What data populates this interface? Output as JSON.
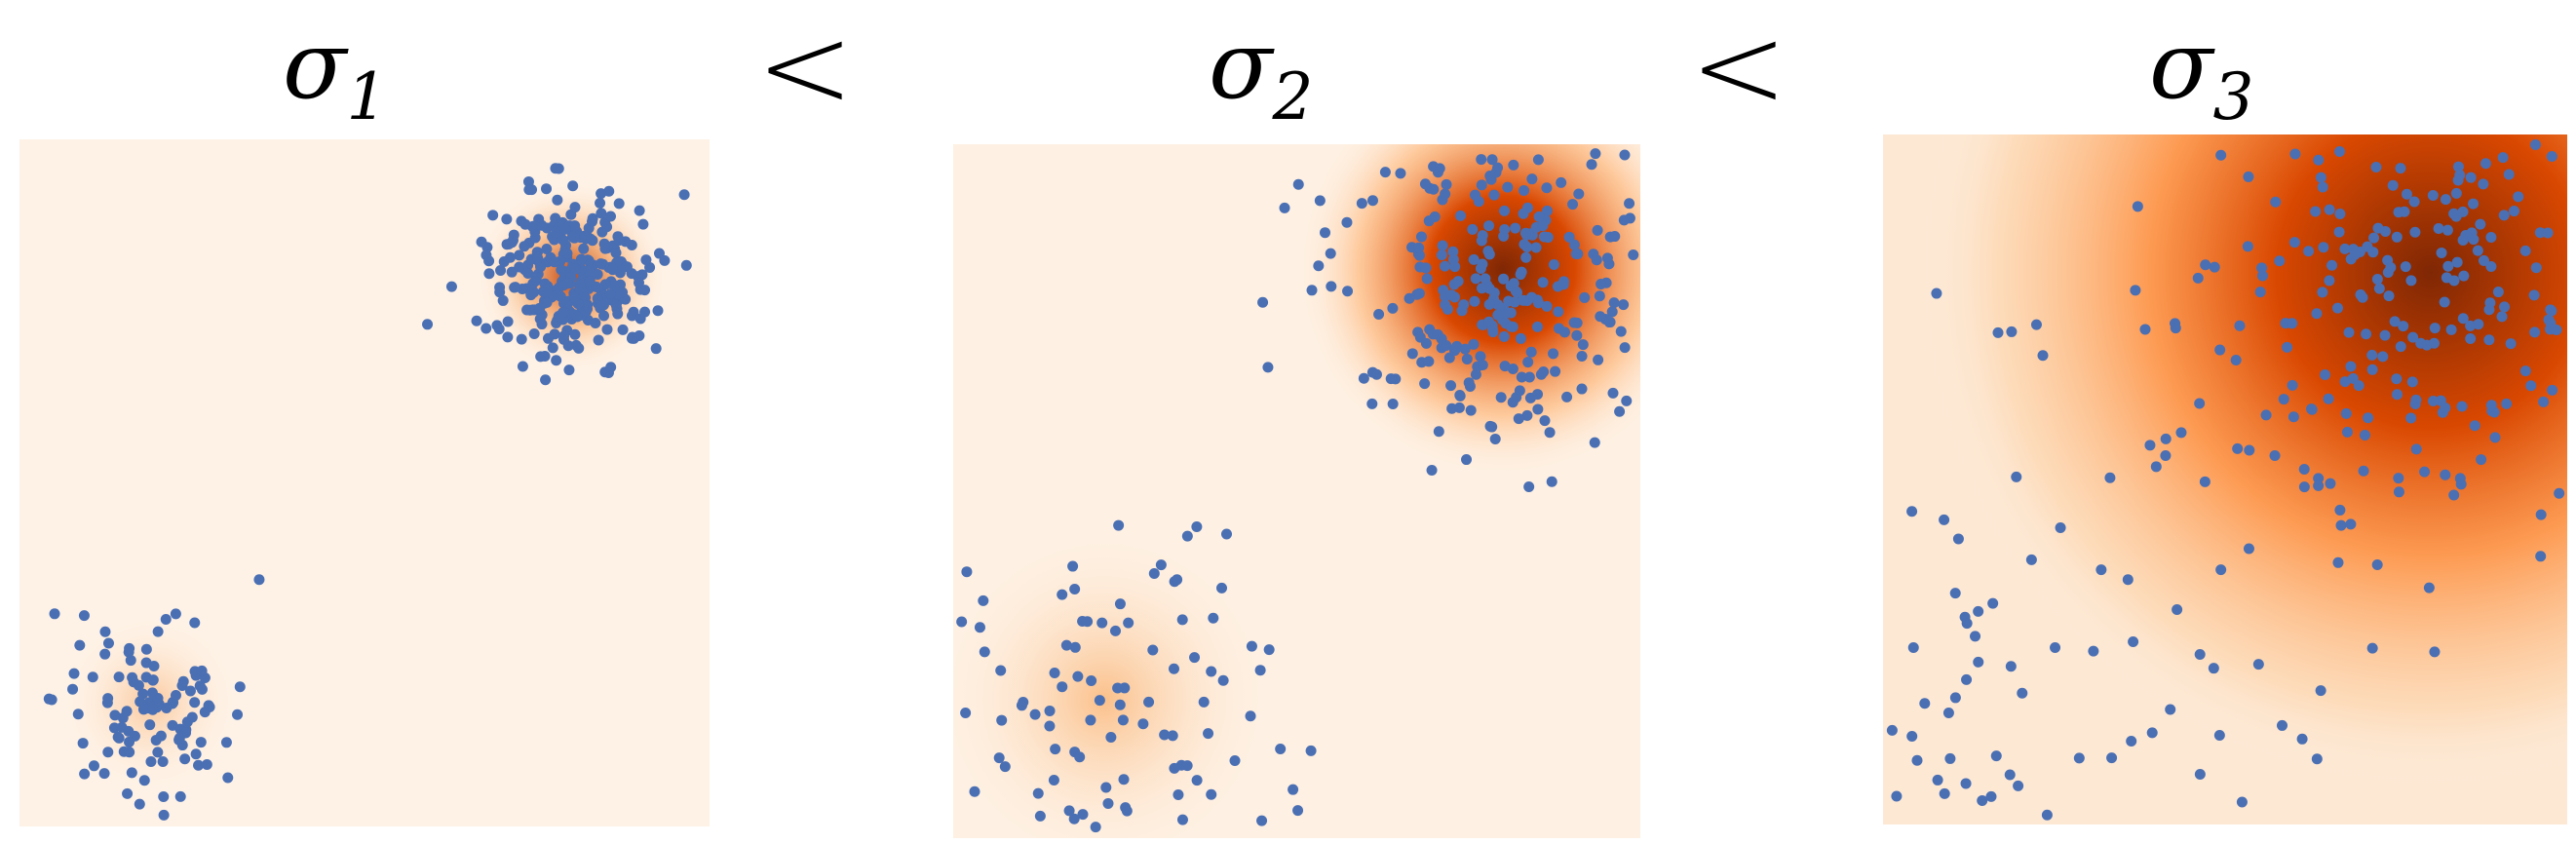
{
  "panels": [
    {
      "symbol": "σ",
      "subscript": "1"
    },
    {
      "symbol": "σ",
      "subscript": "2"
    },
    {
      "symbol": "σ",
      "subscript": "3"
    }
  ],
  "separators": [
    "<",
    "<"
  ]
}
